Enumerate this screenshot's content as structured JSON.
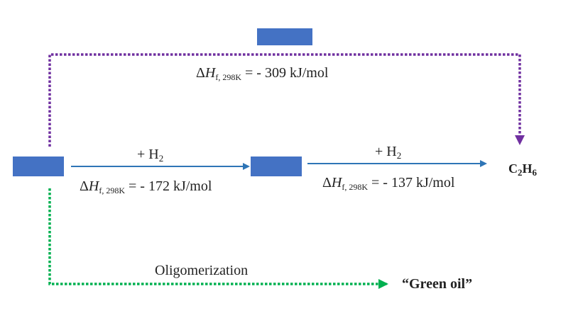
{
  "diagram": {
    "reactions": {
      "direct": {
        "delta": "Δ",
        "h": "H",
        "sub": "f, 298K",
        "value": " = - 309 kJ/mol"
      },
      "step1": {
        "reagent_prefix": "+ H",
        "reagent_sub": "2",
        "delta": "Δ",
        "h": "H",
        "sub": "f, 298K",
        "value": " = - 172 kJ/mol"
      },
      "step2": {
        "reagent_prefix": "+ H",
        "reagent_sub": "2",
        "delta": "Δ",
        "h": "H",
        "sub": "f, 298K",
        "value": " = - 137 kJ/mol"
      }
    },
    "product": {
      "c": "C",
      "c_sub": "2",
      "h": "H",
      "h_sub": "6"
    },
    "oligomerization_label": "Oligomerization",
    "green_oil_label": "“Green oil”",
    "colors": {
      "box": "#4472c4",
      "blue_arrow": "#2e75b6",
      "purple_dotted": "#7030a0",
      "green_dotted": "#00b050"
    }
  }
}
